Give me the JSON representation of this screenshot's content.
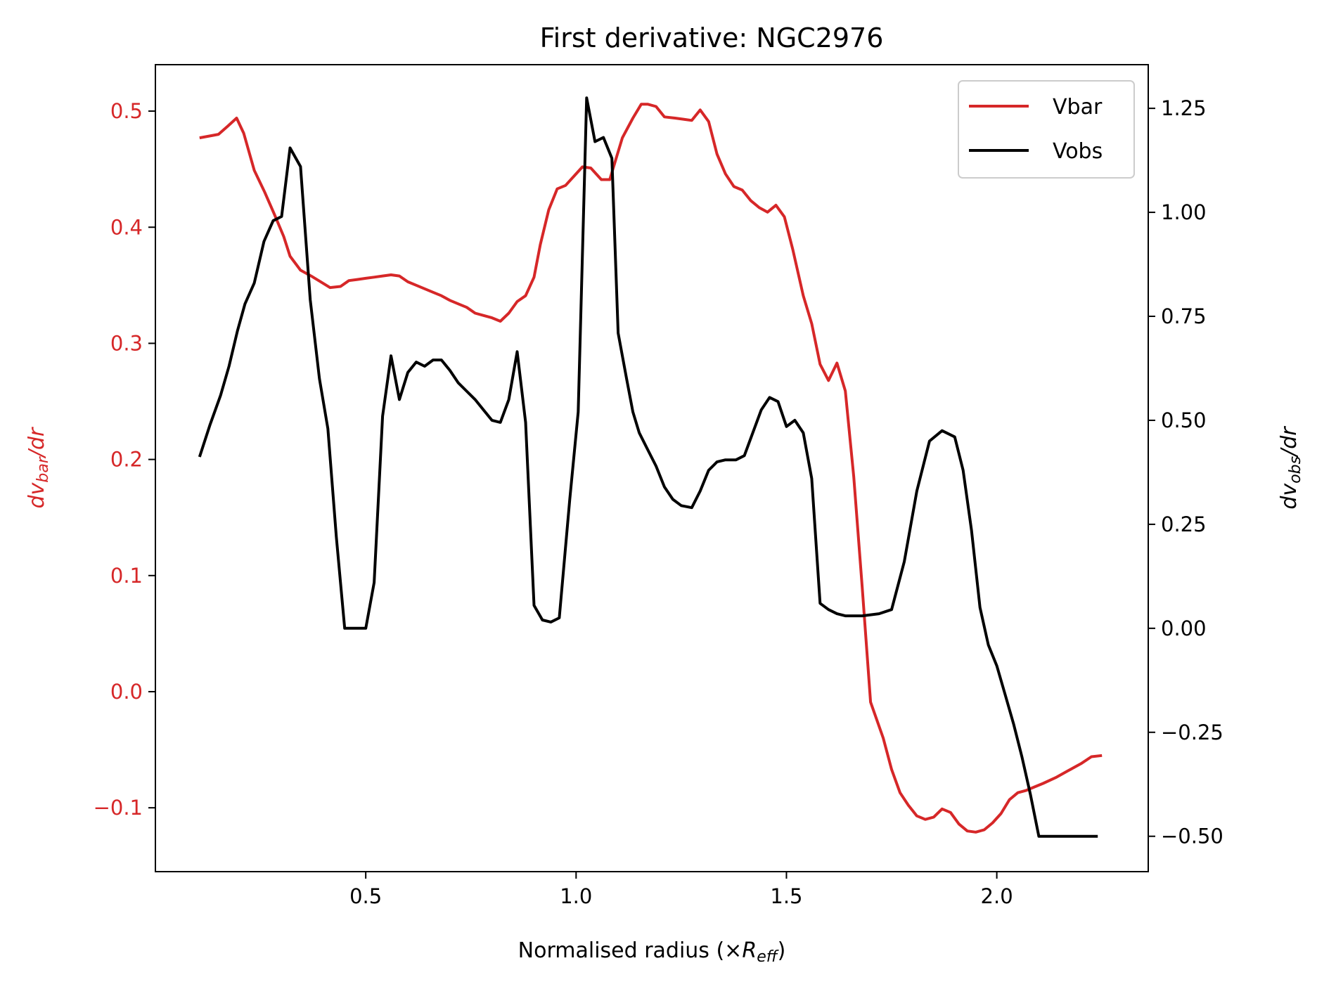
{
  "chart_data": {
    "type": "line",
    "title": "First derivative: NGC2976",
    "xlabel": "Normalised radius (×R_eff)",
    "xlabel_parts": {
      "prefix": "Normalised radius (×",
      "symbol": "R",
      "sub": "eff",
      "suffix": ")"
    },
    "ylabel_left": "dv_bar/dr",
    "ylabel_left_parts": {
      "pre": "dv",
      "sub": "bar",
      "post": "/dr"
    },
    "ylabel_right": "dv_obs/dr",
    "ylabel_right_parts": {
      "pre": "dv",
      "sub": "obs",
      "post": "/dr"
    },
    "xlim": [
      0.0,
      2.36
    ],
    "ylim_left": [
      -0.155,
      0.54
    ],
    "ylim_right": [
      -0.585,
      1.355
    ],
    "x_ticks": [
      0.5,
      1.0,
      1.5,
      2.0
    ],
    "x_tick_labels": [
      "0.5",
      "1.0",
      "1.5",
      "2.0"
    ],
    "y_left_ticks": [
      -0.1,
      0.0,
      0.1,
      0.2,
      0.3,
      0.4,
      0.5
    ],
    "y_left_tick_labels": [
      "−0.1",
      "0.0",
      "0.1",
      "0.2",
      "0.3",
      "0.4",
      "0.5"
    ],
    "y_right_ticks": [
      -0.5,
      -0.25,
      0.0,
      0.25,
      0.5,
      0.75,
      1.0,
      1.25
    ],
    "y_right_tick_labels": [
      "−0.50",
      "−0.25",
      "0.00",
      "0.25",
      "0.50",
      "0.75",
      "1.00",
      "1.25"
    ],
    "grid": false,
    "legend_position": "top-right",
    "series": [
      {
        "name": "Vbar",
        "axis": "left",
        "color": "#d62728",
        "x": [
          0.105,
          0.15,
          0.172,
          0.193,
          0.21,
          0.235,
          0.26,
          0.283,
          0.305,
          0.32,
          0.345,
          0.37,
          0.393,
          0.415,
          0.44,
          0.46,
          0.48,
          0.5,
          0.52,
          0.54,
          0.56,
          0.58,
          0.6,
          0.62,
          0.64,
          0.66,
          0.68,
          0.7,
          0.72,
          0.74,
          0.76,
          0.78,
          0.8,
          0.82,
          0.84,
          0.86,
          0.88,
          0.9,
          0.915,
          0.935,
          0.955,
          0.975,
          0.995,
          1.015,
          1.035,
          1.06,
          1.08,
          1.095,
          1.11,
          1.135,
          1.155,
          1.17,
          1.19,
          1.21,
          1.235,
          1.255,
          1.275,
          1.295,
          1.315,
          1.335,
          1.355,
          1.375,
          1.395,
          1.415,
          1.435,
          1.455,
          1.475,
          1.495,
          1.515,
          1.54,
          1.56,
          1.58,
          1.6,
          1.62,
          1.64,
          1.66,
          1.68,
          1.7,
          1.73,
          1.75,
          1.77,
          1.79,
          1.81,
          1.83,
          1.85,
          1.87,
          1.89,
          1.91,
          1.93,
          1.95,
          1.97,
          1.99,
          2.01,
          2.03,
          2.05,
          2.07,
          2.09,
          2.11,
          2.14,
          2.17,
          2.2,
          2.225,
          2.25
        ],
        "values": [
          0.477,
          0.48,
          0.487,
          0.494,
          0.481,
          0.449,
          0.43,
          0.411,
          0.392,
          0.375,
          0.363,
          0.358,
          0.353,
          0.348,
          0.349,
          0.354,
          0.355,
          0.356,
          0.357,
          0.358,
          0.359,
          0.358,
          0.353,
          0.35,
          0.347,
          0.344,
          0.341,
          0.337,
          0.334,
          0.331,
          0.326,
          0.324,
          0.322,
          0.319,
          0.326,
          0.336,
          0.341,
          0.357,
          0.385,
          0.415,
          0.433,
          0.436,
          0.444,
          0.452,
          0.451,
          0.441,
          0.441,
          0.459,
          0.477,
          0.494,
          0.506,
          0.506,
          0.504,
          0.495,
          0.494,
          0.493,
          0.492,
          0.501,
          0.491,
          0.463,
          0.446,
          0.435,
          0.432,
          0.423,
          0.417,
          0.413,
          0.419,
          0.409,
          0.381,
          0.341,
          0.317,
          0.282,
          0.268,
          0.283,
          0.259,
          0.185,
          0.09,
          -0.009,
          -0.04,
          -0.067,
          -0.087,
          -0.098,
          -0.107,
          -0.11,
          -0.108,
          -0.101,
          -0.104,
          -0.114,
          -0.12,
          -0.121,
          -0.119,
          -0.113,
          -0.105,
          -0.093,
          -0.087,
          -0.085,
          -0.082,
          -0.079,
          -0.074,
          -0.068,
          -0.062,
          -0.056,
          -0.055
        ]
      },
      {
        "name": "Vobs",
        "axis": "right",
        "color": "#000000",
        "x": [
          0.105,
          0.13,
          0.155,
          0.175,
          0.195,
          0.213,
          0.235,
          0.258,
          0.28,
          0.3,
          0.32,
          0.345,
          0.368,
          0.39,
          0.41,
          0.43,
          0.45,
          0.47,
          0.5,
          0.52,
          0.54,
          0.56,
          0.58,
          0.6,
          0.62,
          0.64,
          0.66,
          0.68,
          0.7,
          0.72,
          0.74,
          0.76,
          0.78,
          0.8,
          0.82,
          0.84,
          0.86,
          0.88,
          0.9,
          0.92,
          0.94,
          0.96,
          0.985,
          1.005,
          1.025,
          1.045,
          1.065,
          1.085,
          1.1,
          1.12,
          1.135,
          1.15,
          1.17,
          1.19,
          1.21,
          1.23,
          1.25,
          1.275,
          1.295,
          1.315,
          1.335,
          1.355,
          1.38,
          1.4,
          1.42,
          1.44,
          1.46,
          1.48,
          1.5,
          1.52,
          1.54,
          1.56,
          1.58,
          1.6,
          1.62,
          1.64,
          1.66,
          1.68,
          1.72,
          1.75,
          1.78,
          1.81,
          1.84,
          1.87,
          1.9,
          1.92,
          1.94,
          1.96,
          1.98,
          2.0,
          2.02,
          2.04,
          2.06,
          2.08,
          2.1,
          2.13,
          2.16,
          2.19,
          2.22,
          2.24
        ],
        "values": [
          0.412,
          0.49,
          0.56,
          0.63,
          0.715,
          0.78,
          0.83,
          0.93,
          0.98,
          0.99,
          1.155,
          1.11,
          0.79,
          0.6,
          0.48,
          0.22,
          0.0,
          0.0,
          0.0,
          0.11,
          0.51,
          0.655,
          0.55,
          0.615,
          0.64,
          0.63,
          0.645,
          0.645,
          0.62,
          0.59,
          0.57,
          0.55,
          0.525,
          0.5,
          0.495,
          0.55,
          0.665,
          0.495,
          0.055,
          0.02,
          0.015,
          0.025,
          0.31,
          0.52,
          1.275,
          1.17,
          1.18,
          1.13,
          0.71,
          0.6,
          0.52,
          0.47,
          0.43,
          0.39,
          0.34,
          0.31,
          0.295,
          0.29,
          0.33,
          0.38,
          0.4,
          0.405,
          0.405,
          0.415,
          0.47,
          0.525,
          0.555,
          0.545,
          0.485,
          0.5,
          0.47,
          0.36,
          0.06,
          0.045,
          0.035,
          0.03,
          0.03,
          0.03,
          0.035,
          0.045,
          0.16,
          0.33,
          0.45,
          0.475,
          0.46,
          0.38,
          0.235,
          0.05,
          -0.04,
          -0.09,
          -0.16,
          -0.23,
          -0.31,
          -0.4,
          -0.5,
          -0.5,
          -0.5,
          -0.5,
          -0.5,
          -0.5
        ]
      }
    ]
  }
}
